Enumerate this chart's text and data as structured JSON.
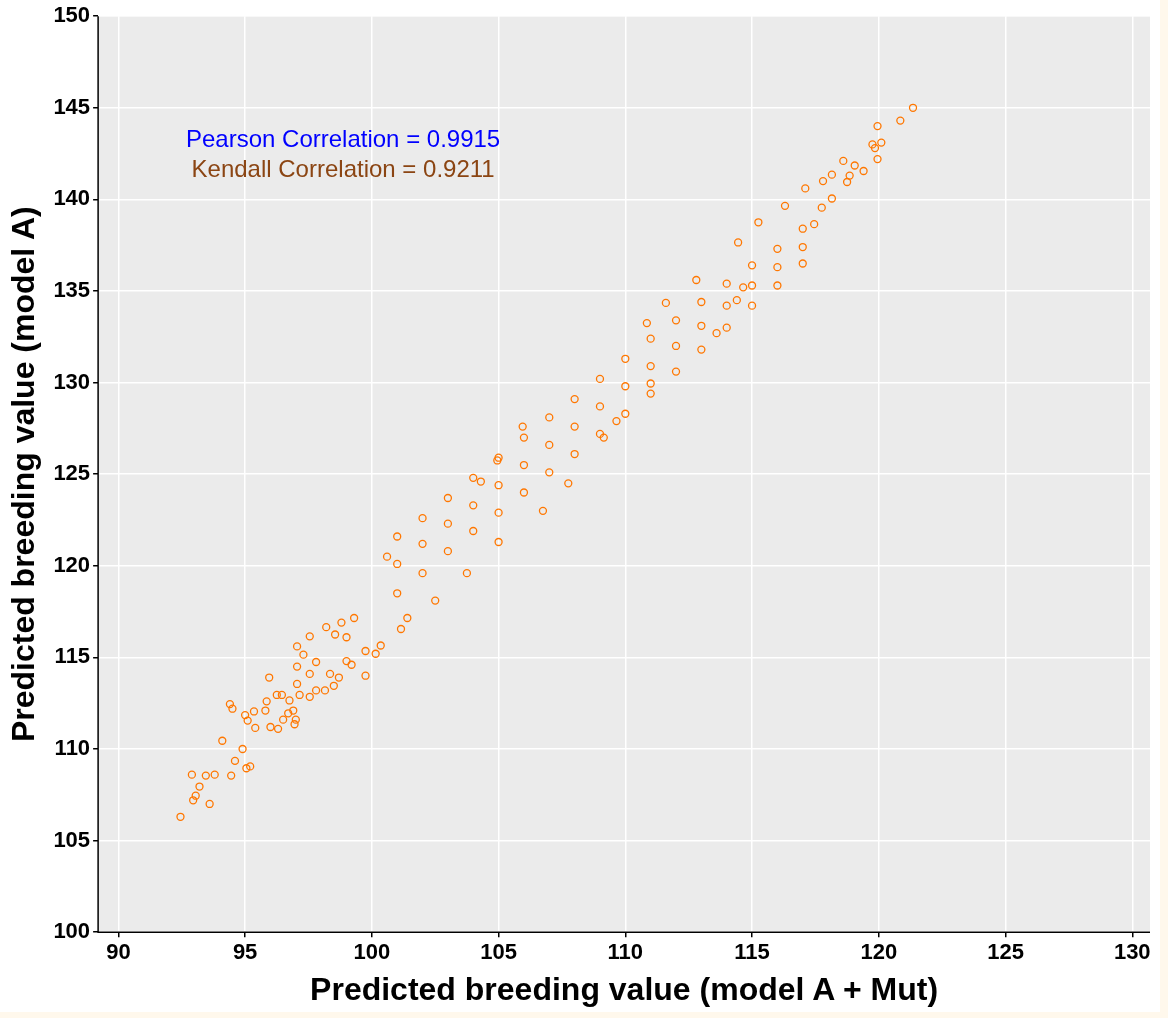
{
  "chart_data": {
    "type": "scatter",
    "xlabel": "Predicted breeding value (model A + Mut)",
    "ylabel": "Predicted breeding value (model A)",
    "annotations": [
      "Pearson Correlation = 0.9915",
      "Kendall Correlation = 0.9211"
    ],
    "xlim": [
      89.2,
      130.7
    ],
    "xticks": [
      90,
      95,
      100,
      105,
      110,
      115,
      120,
      125,
      130
    ],
    "ylim": [
      100,
      150
    ],
    "yticks": [
      100,
      105,
      110,
      115,
      120,
      125,
      130,
      135,
      140,
      145,
      150
    ],
    "grid": true,
    "marker": "circle",
    "series": [
      {
        "color": "#ff7700",
        "x": [
          92.45,
          92.95,
          93.05,
          93.2,
          93.6,
          92.9,
          93.45,
          93.8,
          94.45,
          94.1,
          94.6,
          94.9,
          95.05,
          95.2,
          94.4,
          94.5,
          95.0,
          95.1,
          95.35,
          95.4,
          95.8,
          95.85,
          95.95,
          96.0,
          96.3,
          96.25,
          96.45,
          96.5,
          96.7,
          96.9,
          96.95,
          97.0,
          96.75,
          97.15,
          97.05,
          97.55,
          97.8,
          98.15,
          98.5,
          97.05,
          97.55,
          97.8,
          97.55,
          97.05,
          97.3,
          98.2,
          98.35,
          98.7,
          99.75,
          99.0,
          99.2,
          98.55,
          99.0,
          99.75,
          100.15,
          100.35,
          98.8,
          99.3,
          101.15,
          101.4,
          121.35,
          120.85,
          119.95,
          120.1,
          119.75,
          119.85,
          119.95,
          119.4,
          119.05,
          118.6,
          118.85,
          118.75,
          118.15,
          117.8,
          118.15,
          117.75,
          117.45,
          117.1,
          116.3,
          115.25,
          114.45,
          114.65,
          114.4,
          113.6,
          111.6,
          110.85,
          112.8,
          105.95,
          106.75,
          107.75,
          104.95,
          100.6,
          103.75,
          102.5,
          111.0,
          109.65,
          109.15,
          104.3,
          105.0,
          101,
          101,
          101,
          102,
          102,
          102,
          103,
          103,
          103,
          104,
          104,
          104,
          105,
          105,
          105,
          106,
          106,
          106,
          107,
          107,
          107,
          108,
          108,
          108,
          109,
          109,
          109,
          110,
          110,
          110,
          111,
          111,
          111,
          112,
          112,
          112,
          113,
          113,
          113,
          114,
          114,
          114,
          115,
          115,
          115,
          116,
          116,
          116,
          117,
          117,
          117
        ],
        "values": [
          106.3,
          107.2,
          107.45,
          107.95,
          107.0,
          108.6,
          108.55,
          108.6,
          108.55,
          110.45,
          109.35,
          110.0,
          108.95,
          109.05,
          112.45,
          112.2,
          111.85,
          111.55,
          112.05,
          111.15,
          112.1,
          112.6,
          113.9,
          111.2,
          111.1,
          112.95,
          112.95,
          111.6,
          111.95,
          112.1,
          111.35,
          111.6,
          112.65,
          112.95,
          113.55,
          112.85,
          113.2,
          113.2,
          113.45,
          114.5,
          114.1,
          114.75,
          116.15,
          115.6,
          115.15,
          116.65,
          114.1,
          113.9,
          114.0,
          114.8,
          114.6,
          116.25,
          116.1,
          115.35,
          115.2,
          115.65,
          116.9,
          117.15,
          116.55,
          117.15,
          145.0,
          144.3,
          144.0,
          143.1,
          143.0,
          142.8,
          142.2,
          141.55,
          141.85,
          142.1,
          141.3,
          140.95,
          141.35,
          141.0,
          140.05,
          139.55,
          138.65,
          140.6,
          139.65,
          138.75,
          137.65,
          135.2,
          134.5,
          132.7,
          134.35,
          133.25,
          135.6,
          127.6,
          123.0,
          124.5,
          125.75,
          120.5,
          119.6,
          118.1,
          129.95,
          127.9,
          127.0,
          124.6,
          121.3,
          120.1,
          121.6,
          118.5,
          121.2,
          122.6,
          119.6,
          122.3,
          123.7,
          120.8,
          123.3,
          124.8,
          121.9,
          124.4,
          125.9,
          122.9,
          125.5,
          127.0,
          124.0,
          126.6,
          128.1,
          125.1,
          127.6,
          129.1,
          126.1,
          128.7,
          130.2,
          127.2,
          129.8,
          131.3,
          128.3,
          130.9,
          132.4,
          129.4,
          132.0,
          133.4,
          130.6,
          133.1,
          134.4,
          131.8,
          134.2,
          135.4,
          133.0,
          135.3,
          136.4,
          134.2,
          136.3,
          137.3,
          135.3,
          137.4,
          138.4,
          136.5
        ]
      }
    ]
  }
}
